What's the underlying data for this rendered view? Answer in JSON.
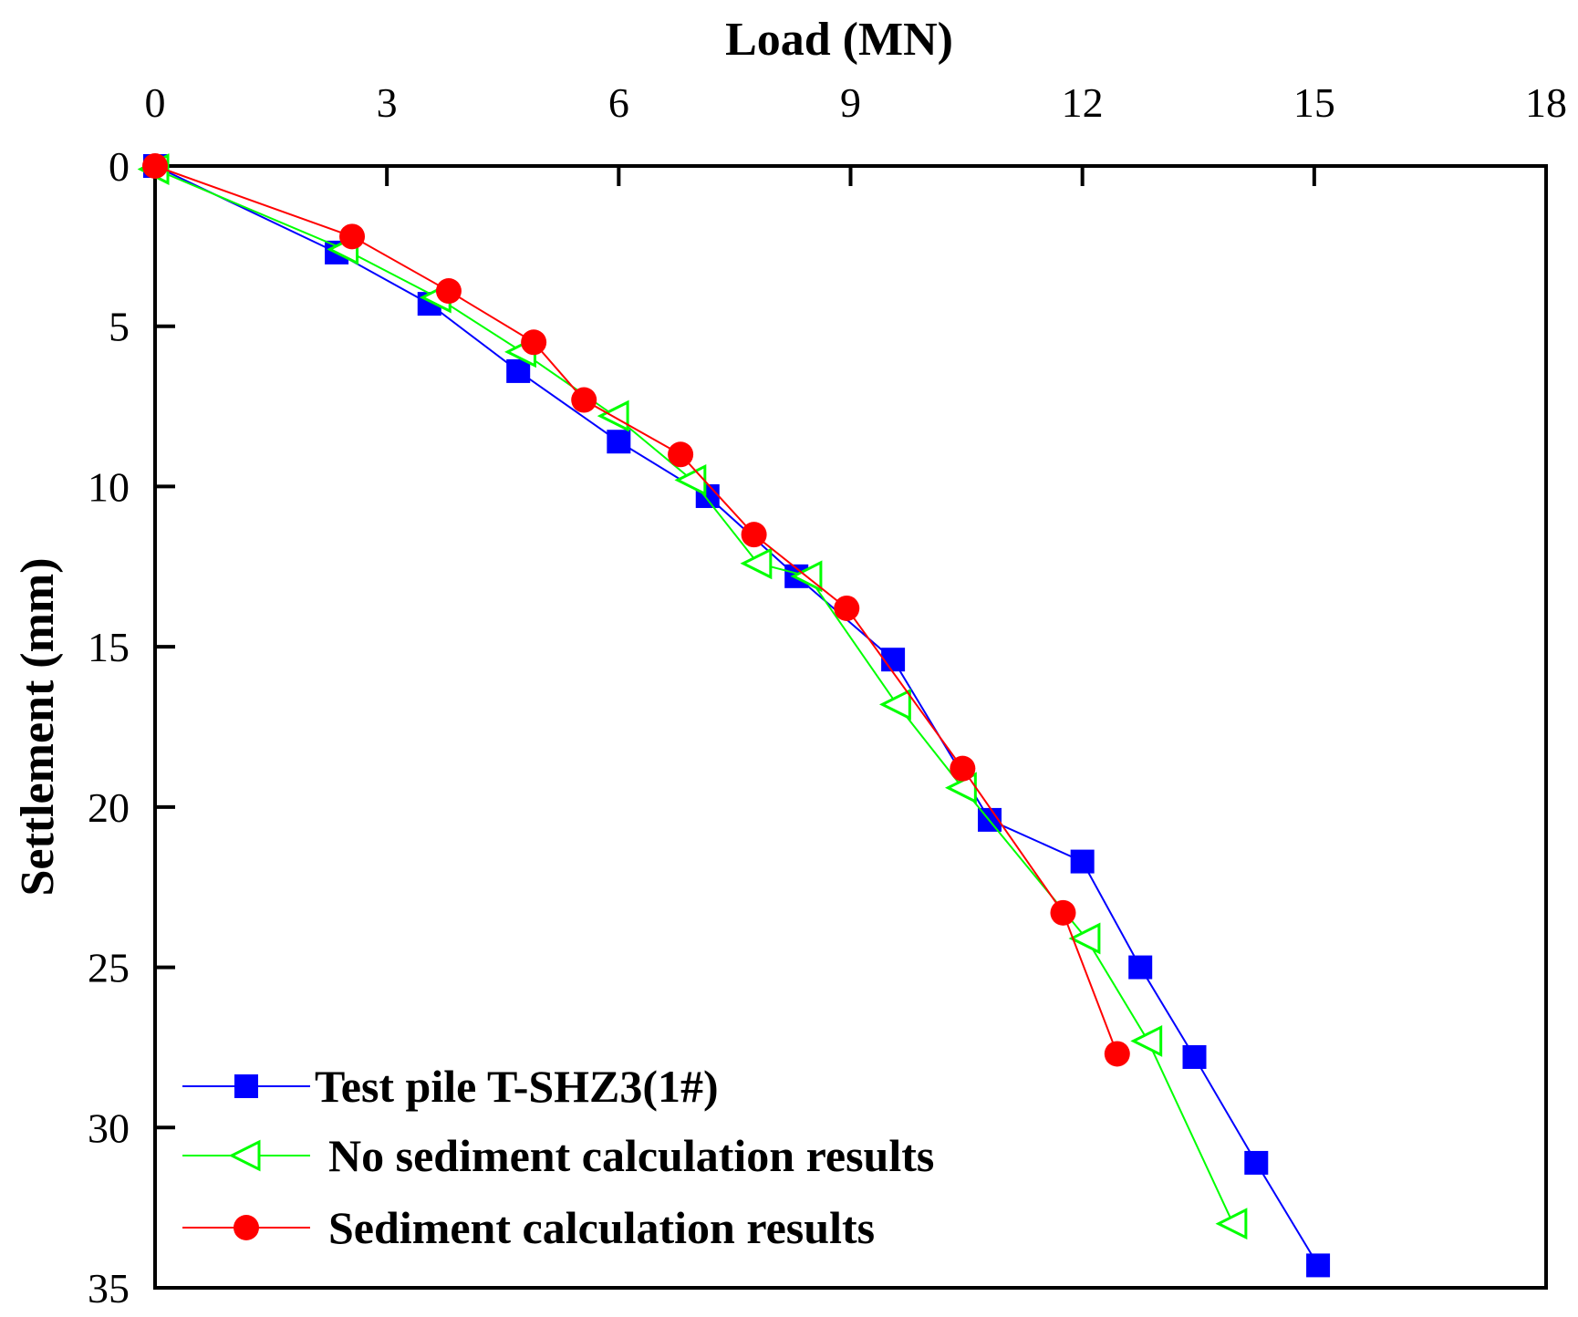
{
  "chart_data": {
    "type": "line",
    "title": "",
    "xlabel": "Load (MN)",
    "ylabel": "Settlement (mm)",
    "xlim": [
      0,
      18
    ],
    "ylim": [
      0,
      35
    ],
    "x_axis_position": "top",
    "y_axis_inverted": true,
    "x_ticks": [
      0,
      3,
      6,
      9,
      12,
      15,
      18
    ],
    "y_ticks": [
      0,
      5,
      10,
      15,
      20,
      25,
      30,
      35
    ],
    "grid": false,
    "legend_position": "bottom-left",
    "series": [
      {
        "name": "Test pile T-SHZ3(1#)",
        "color": "#0000ff",
        "marker": "square",
        "points": [
          [
            0,
            0
          ],
          [
            2.35,
            2.7
          ],
          [
            3.55,
            4.3
          ],
          [
            4.7,
            6.4
          ],
          [
            6.0,
            8.6
          ],
          [
            7.15,
            10.3
          ],
          [
            8.3,
            12.8
          ],
          [
            9.55,
            15.4
          ],
          [
            10.8,
            20.4
          ],
          [
            12.0,
            21.7
          ],
          [
            12.75,
            25.0
          ],
          [
            13.45,
            27.8
          ],
          [
            14.25,
            31.1
          ],
          [
            15.05,
            34.3
          ]
        ]
      },
      {
        "name": "No sediment calculation results",
        "color": "#00ff00",
        "marker": "triangle-left",
        "points": [
          [
            0,
            0.1
          ],
          [
            2.45,
            2.6
          ],
          [
            3.65,
            4.1
          ],
          [
            4.75,
            5.8
          ],
          [
            5.95,
            7.8
          ],
          [
            6.95,
            9.8
          ],
          [
            7.8,
            12.4
          ],
          [
            8.45,
            12.8
          ],
          [
            9.6,
            16.8
          ],
          [
            10.45,
            19.4
          ],
          [
            12.05,
            24.1
          ],
          [
            12.85,
            27.3
          ],
          [
            13.95,
            33.0
          ]
        ]
      },
      {
        "name": "Sediment calculation results",
        "color": "#ff0000",
        "marker": "circle",
        "points": [
          [
            0,
            0
          ],
          [
            2.55,
            2.2
          ],
          [
            3.8,
            3.9
          ],
          [
            4.9,
            5.5
          ],
          [
            5.55,
            7.3
          ],
          [
            6.8,
            9.0
          ],
          [
            7.75,
            11.5
          ],
          [
            8.95,
            13.8
          ],
          [
            10.45,
            18.8
          ],
          [
            11.75,
            23.3
          ],
          [
            12.45,
            27.7
          ]
        ]
      }
    ]
  }
}
